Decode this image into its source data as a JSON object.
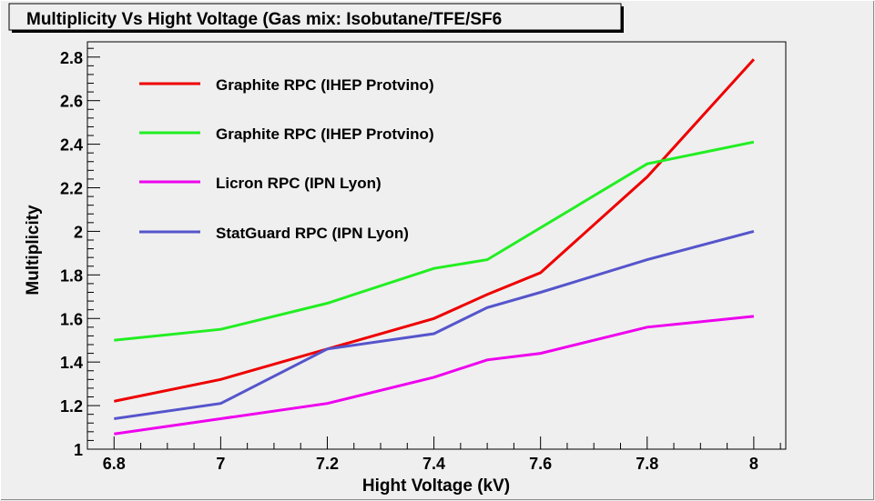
{
  "chart_data": {
    "type": "line",
    "title": "Multiplicity Vs Hight Voltage (Gas mix: Isobutane/TFE/SF6",
    "xlabel": "Hight Voltage (kV)",
    "ylabel": "Multiplicity",
    "xlim": [
      6.75,
      8.06
    ],
    "ylim": [
      1.0,
      2.87
    ],
    "x_ticks": [
      6.8,
      7.0,
      7.2,
      7.4,
      7.6,
      7.8,
      8.0
    ],
    "x_tick_labels": [
      "6.8",
      "7",
      "7.2",
      "7.4",
      "7.6",
      "7.8",
      "8"
    ],
    "y_ticks": [
      1.0,
      1.2,
      1.4,
      1.6,
      1.8,
      2.0,
      2.2,
      2.4,
      2.6,
      2.8
    ],
    "y_tick_labels": [
      "1",
      "1.2",
      "1.4",
      "1.6",
      "1.8",
      "2",
      "2.2",
      "2.4",
      "2.6",
      "2.8"
    ],
    "grid": false,
    "legend_position": "top-left",
    "series": [
      {
        "name": "Graphite RPC (IHEP Protvino)",
        "color": "#ee0000",
        "x": [
          6.8,
          7.0,
          7.2,
          7.4,
          7.5,
          7.6,
          7.8,
          8.0
        ],
        "y": [
          1.22,
          1.32,
          1.46,
          1.6,
          1.71,
          1.81,
          2.25,
          2.79
        ]
      },
      {
        "name": "Graphite RPC (IHEP Protvino)",
        "color": "#22ee22",
        "x": [
          6.8,
          7.0,
          7.2,
          7.4,
          7.5,
          7.8,
          8.0
        ],
        "y": [
          1.5,
          1.55,
          1.67,
          1.83,
          1.87,
          2.31,
          2.41
        ]
      },
      {
        "name": "Licron RPC (IPN Lyon)",
        "color": "#ee00ee",
        "x": [
          6.8,
          7.0,
          7.2,
          7.4,
          7.5,
          7.6,
          7.8,
          8.0
        ],
        "y": [
          1.07,
          1.14,
          1.21,
          1.33,
          1.41,
          1.44,
          1.56,
          1.61
        ]
      },
      {
        "name": "StatGuard RPC (IPN Lyon)",
        "color": "#5555cc",
        "x": [
          6.8,
          7.0,
          7.2,
          7.4,
          7.5,
          7.6,
          7.8,
          8.0
        ],
        "y": [
          1.14,
          1.21,
          1.46,
          1.53,
          1.65,
          1.72,
          1.87,
          2.0
        ]
      }
    ]
  }
}
